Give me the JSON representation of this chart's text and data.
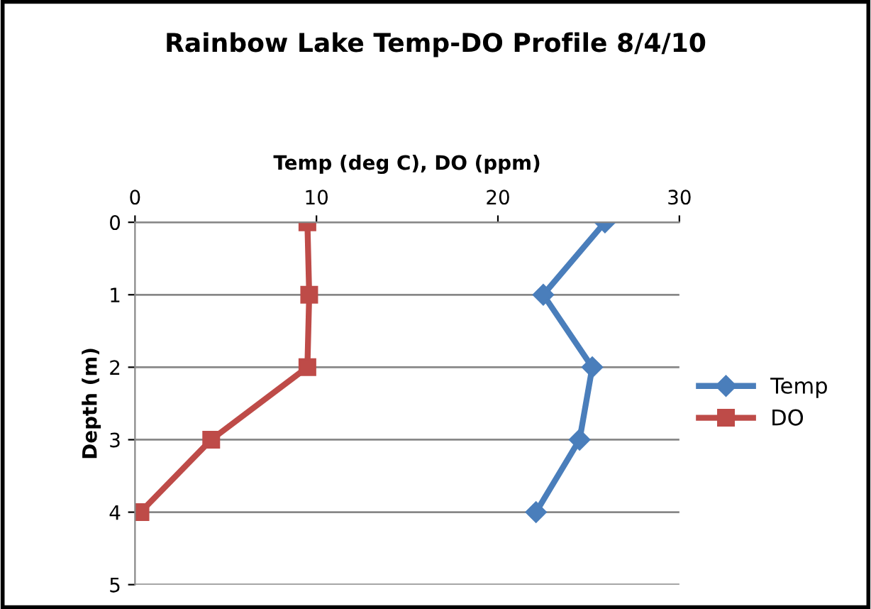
{
  "chart_data": {
    "type": "line",
    "title": "Rainbow Lake Temp-DO Profile 8/4/10",
    "xlabel": "Temp (deg C), DO (ppm)",
    "ylabel": "Depth (m)",
    "xlim": [
      0,
      30
    ],
    "xticks": [
      0,
      10,
      20,
      30
    ],
    "ylim": [
      5,
      0
    ],
    "yticks": [
      0,
      1,
      2,
      3,
      4,
      5
    ],
    "grid": "y",
    "legend": "right",
    "line_style": "solid",
    "series": [
      {
        "name": "Temp",
        "color": "#4a7ebb",
        "marker": "diamond",
        "x": [
          25.9,
          22.5,
          25.2,
          24.5,
          22.1
        ],
        "values": [
          0,
          1,
          2,
          3,
          4
        ]
      },
      {
        "name": "DO",
        "color": "#be4b48",
        "marker": "square",
        "x": [
          9.5,
          9.6,
          9.5,
          4.2,
          0.3
        ],
        "values": [
          0,
          1,
          2,
          3,
          4
        ]
      }
    ]
  }
}
